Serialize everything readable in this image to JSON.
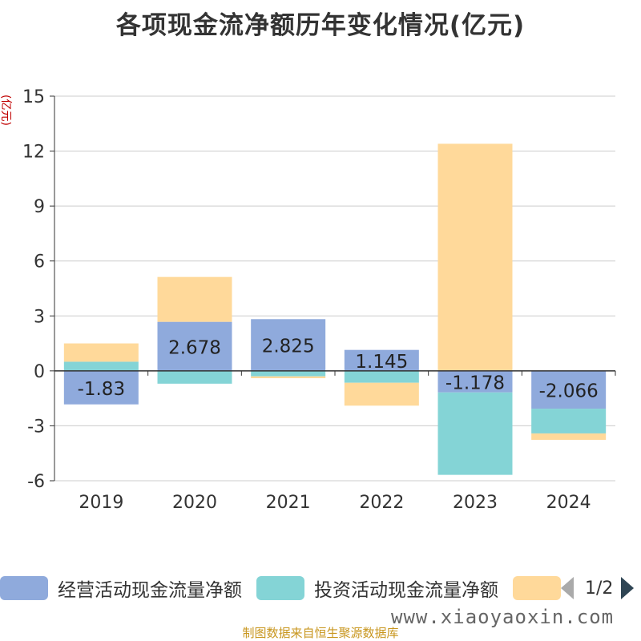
{
  "title": "各项现金流净额历年变化情况(亿元)",
  "unit_label": "(亿元)",
  "legend": {
    "items": [
      {
        "label": "经营活动现金流量净额",
        "color": "#8faadc"
      },
      {
        "label": "投资活动现金流量净额",
        "color": "#84d4d6"
      },
      {
        "label": "",
        "color": "#ffd99a"
      }
    ],
    "page": "1/2"
  },
  "source": "制图数据来自恒生聚源数据库",
  "watermark": "www.xiaoyaoxin.com",
  "chart_data": {
    "type": "bar",
    "stacked": true,
    "categories": [
      "2019",
      "2020",
      "2021",
      "2022",
      "2023",
      "2024"
    ],
    "ylim": [
      -6,
      15
    ],
    "yticks": [
      -6,
      -3,
      0,
      3,
      6,
      9,
      12,
      15
    ],
    "grid": true,
    "legend_position": "bottom",
    "series": [
      {
        "name": "经营活动现金流量净额",
        "color": "#8faadc",
        "values": [
          -1.83,
          2.678,
          2.825,
          1.145,
          -1.178,
          -2.066
        ],
        "labels": [
          "-1.83",
          "2.678",
          "2.825",
          "1.145",
          "-1.178",
          "-2.066"
        ]
      },
      {
        "name": "投资活动现金流量净额",
        "color": "#84d4d6",
        "values": [
          0.5,
          -0.7,
          -0.3,
          -0.65,
          -4.5,
          -1.35
        ]
      },
      {
        "name": "",
        "color": "#ffd99a",
        "values": [
          1.0,
          2.45,
          -0.1,
          -1.25,
          12.4,
          -0.35
        ]
      }
    ]
  }
}
